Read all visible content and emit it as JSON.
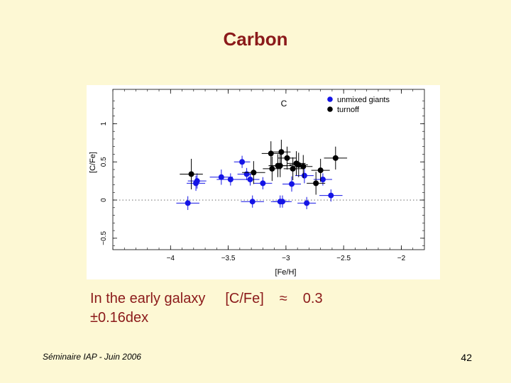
{
  "slide": {
    "title": "Carbon",
    "caption_line1_part1": "In the early galaxy",
    "caption_line1_part2": "[C/Fe]",
    "caption_line1_part3": "≈",
    "caption_line1_part4": "0.3",
    "caption_line2": "±0.16dex",
    "footer": "Séminaire IAP -   Juin 2006",
    "page_number": "42"
  },
  "chart_data": {
    "type": "scatter",
    "annotation": "C",
    "xlabel": "[Fe/H]",
    "ylabel": "[C/Fe]",
    "xlim": [
      -4.5,
      -1.8
    ],
    "ylim": [
      -0.65,
      1.45
    ],
    "xticks": [
      -4,
      -3.5,
      -3,
      -2.5,
      -2
    ],
    "xtick_labels": [
      "−4",
      "−3.5",
      "−3",
      "−2.5",
      "−2"
    ],
    "yticks": [
      -0.5,
      0,
      0.5,
      1
    ],
    "ytick_labels": [
      "−0.5",
      "0",
      "0.5",
      "1"
    ],
    "zero_line": "dotted",
    "legend_position": "top-right",
    "colors": {
      "unmixed": "#1414e6",
      "turnoff": "#000000"
    },
    "series": [
      {
        "name": "unmixed giants",
        "points": [
          {
            "x": -3.85,
            "y": -0.04,
            "xerr": 0.1,
            "yerr": 0.09
          },
          {
            "x": -3.78,
            "y": 0.22,
            "xerr": 0.08,
            "yerr": 0.1
          },
          {
            "x": -3.77,
            "y": 0.25,
            "xerr": 0.08,
            "yerr": 0.1
          },
          {
            "x": -3.56,
            "y": 0.3,
            "xerr": 0.1,
            "yerr": 0.1
          },
          {
            "x": -3.48,
            "y": 0.27,
            "xerr": 0.12,
            "yerr": 0.08
          },
          {
            "x": -3.38,
            "y": 0.5,
            "xerr": 0.07,
            "yerr": 0.08
          },
          {
            "x": -3.34,
            "y": 0.34,
            "xerr": 0.08,
            "yerr": 0.08
          },
          {
            "x": -3.31,
            "y": 0.27,
            "xerr": 0.08,
            "yerr": 0.08
          },
          {
            "x": -3.29,
            "y": -0.02,
            "xerr": 0.1,
            "yerr": 0.08
          },
          {
            "x": -3.2,
            "y": 0.22,
            "xerr": 0.08,
            "yerr": 0.08
          },
          {
            "x": -3.05,
            "y": -0.02,
            "xerr": 0.08,
            "yerr": 0.08
          },
          {
            "x": -3.03,
            "y": -0.02,
            "xerr": 0.08,
            "yerr": 0.08
          },
          {
            "x": -2.95,
            "y": 0.21,
            "xerr": 0.08,
            "yerr": 0.1
          },
          {
            "x": -2.84,
            "y": 0.32,
            "xerr": 0.08,
            "yerr": 0.1
          },
          {
            "x": -2.82,
            "y": -0.04,
            "xerr": 0.08,
            "yerr": 0.08
          },
          {
            "x": -2.68,
            "y": 0.27,
            "xerr": 0.08,
            "yerr": 0.08
          },
          {
            "x": -2.61,
            "y": 0.06,
            "xerr": 0.1,
            "yerr": 0.08
          }
        ]
      },
      {
        "name": "turnoff",
        "points": [
          {
            "x": -3.82,
            "y": 0.34,
            "xerr": 0.1,
            "yerr": 0.2
          },
          {
            "x": -3.28,
            "y": 0.36,
            "xerr": 0.1,
            "yerr": 0.15
          },
          {
            "x": -3.13,
            "y": 0.61,
            "xerr": 0.08,
            "yerr": 0.16
          },
          {
            "x": -3.12,
            "y": 0.41,
            "xerr": 0.08,
            "yerr": 0.16
          },
          {
            "x": -3.07,
            "y": 0.45,
            "xerr": 0.08,
            "yerr": 0.15
          },
          {
            "x": -3.05,
            "y": 0.45,
            "xerr": 0.1,
            "yerr": 0.15
          },
          {
            "x": -3.04,
            "y": 0.63,
            "xerr": 0.08,
            "yerr": 0.16
          },
          {
            "x": -2.99,
            "y": 0.55,
            "xerr": 0.08,
            "yerr": 0.15
          },
          {
            "x": -2.94,
            "y": 0.41,
            "xerr": 0.08,
            "yerr": 0.15
          },
          {
            "x": -2.91,
            "y": 0.48,
            "xerr": 0.08,
            "yerr": 0.16
          },
          {
            "x": -2.89,
            "y": 0.46,
            "xerr": 0.08,
            "yerr": 0.16
          },
          {
            "x": -2.85,
            "y": 0.44,
            "xerr": 0.08,
            "yerr": 0.15
          },
          {
            "x": -2.74,
            "y": 0.22,
            "xerr": 0.08,
            "yerr": 0.15
          },
          {
            "x": -2.7,
            "y": 0.39,
            "xerr": 0.08,
            "yerr": 0.15
          },
          {
            "x": -2.57,
            "y": 0.55,
            "xerr": 0.1,
            "yerr": 0.15
          }
        ]
      }
    ]
  }
}
